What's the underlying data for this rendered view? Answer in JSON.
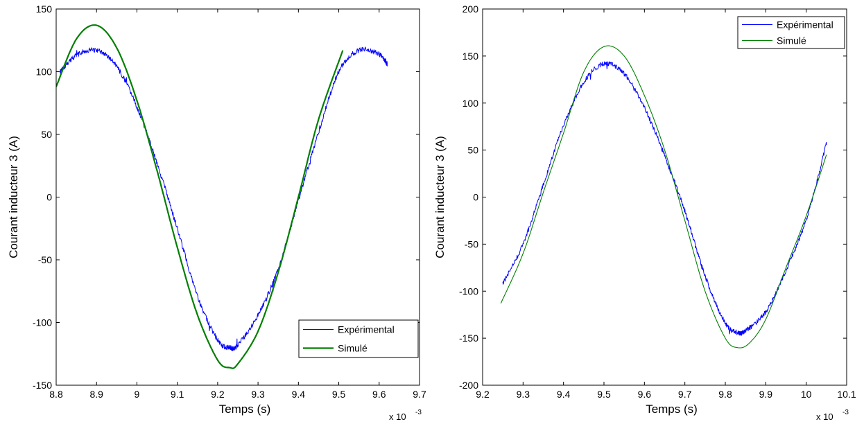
{
  "chart_data": [
    {
      "type": "line",
      "xlabel": "Temps (s)",
      "ylabel": "Courant inducteur 3 (A)",
      "x_multiplier": "x 10",
      "x_multiplier_exp": "-3",
      "xlim": [
        8.8,
        9.7
      ],
      "ylim": [
        -150,
        150
      ],
      "xticks": [
        8.8,
        8.9,
        9,
        9.1,
        9.2,
        9.3,
        9.4,
        9.5,
        9.6,
        9.7
      ],
      "xtick_labels": [
        "8.8",
        "8.9",
        "9",
        "9.1",
        "9.2",
        "9.3",
        "9.4",
        "9.5",
        "9.6",
        "9.7"
      ],
      "yticks": [
        -150,
        -100,
        -50,
        0,
        50,
        100,
        150
      ],
      "ytick_labels": [
        "-150",
        "-100",
        "-50",
        "0",
        "50",
        "100",
        "150"
      ],
      "grid": false,
      "legend_position": "bottom-right",
      "series": [
        {
          "name": "Expérimental",
          "color": "#0000ff",
          "noisy": true,
          "x": [
            8.81,
            8.85,
            8.9,
            8.95,
            9.0,
            9.05,
            9.1,
            9.15,
            9.2,
            9.23,
            9.25,
            9.3,
            9.35,
            9.4,
            9.45,
            9.5,
            9.55,
            9.6,
            9.62
          ],
          "y": [
            100,
            113,
            117,
            104,
            72,
            27,
            -25,
            -79,
            -114,
            -120,
            -118,
            -94,
            -57,
            -3,
            52,
            100,
            117,
            114,
            106
          ]
        },
        {
          "name": "Simulé",
          "color": "#008000",
          "noisy": false,
          "x": [
            8.8,
            8.85,
            8.9,
            8.95,
            9.0,
            9.05,
            9.1,
            9.15,
            9.2,
            9.23,
            9.25,
            9.3,
            9.35,
            9.4,
            9.45,
            9.51
          ],
          "y": [
            88,
            126,
            137,
            119,
            77,
            21,
            -40,
            -94,
            -130,
            -136,
            -133,
            -107,
            -60,
            0,
            62,
            117
          ]
        }
      ]
    },
    {
      "type": "line",
      "xlabel": "Temps (s)",
      "ylabel": "Courant inducteur 3 (A)",
      "x_multiplier": "x 10",
      "x_multiplier_exp": "-3",
      "xlim": [
        9.2,
        10.1
      ],
      "ylim": [
        -200,
        200
      ],
      "xticks": [
        9.2,
        9.3,
        9.4,
        9.5,
        9.6,
        9.7,
        9.8,
        9.9,
        10,
        10.1
      ],
      "xtick_labels": [
        "9.2",
        "9.3",
        "9.4",
        "9.5",
        "9.6",
        "9.7",
        "9.8",
        "9.9",
        "10",
        "10.1"
      ],
      "yticks": [
        -200,
        -150,
        -100,
        -50,
        0,
        50,
        100,
        150,
        200
      ],
      "ytick_labels": [
        "-200",
        "-150",
        "-100",
        "-50",
        "0",
        "50",
        "100",
        "150",
        "200"
      ],
      "grid": false,
      "legend_position": "top-right",
      "series": [
        {
          "name": "Expérimental",
          "color": "#0000ff",
          "noisy": true,
          "x": [
            9.25,
            9.3,
            9.35,
            9.4,
            9.45,
            9.5,
            9.55,
            9.6,
            9.65,
            9.7,
            9.75,
            9.8,
            9.83,
            9.85,
            9.9,
            9.95,
            10.0,
            10.05
          ],
          "y": [
            -92,
            -50,
            13,
            76,
            122,
            142,
            131,
            95,
            44,
            -15,
            -84,
            -134,
            -144,
            -142,
            -122,
            -78,
            -24,
            57
          ]
        },
        {
          "name": "Simulé",
          "color": "#008000",
          "noisy": false,
          "x": [
            9.245,
            9.3,
            9.35,
            9.4,
            9.45,
            9.5,
            9.55,
            9.6,
            9.65,
            9.7,
            9.75,
            9.8,
            9.83,
            9.86,
            9.9,
            9.95,
            10.0,
            10.05
          ],
          "y": [
            -113,
            -60,
            5,
            68,
            133,
            160,
            150,
            108,
            50,
            -25,
            -100,
            -150,
            -160,
            -155,
            -130,
            -75,
            -20,
            45
          ]
        }
      ]
    }
  ]
}
